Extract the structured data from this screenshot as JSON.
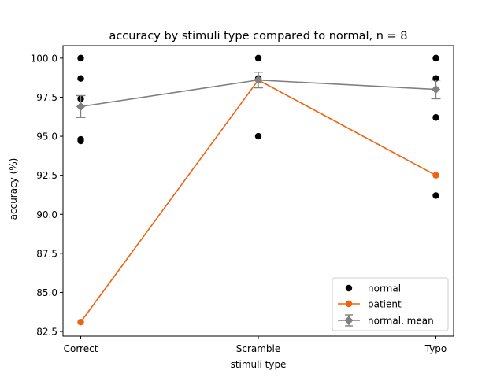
{
  "chart_data": {
    "type": "scatter",
    "title": "accuracy by stimuli type compared to normal, n = 8",
    "xlabel": "stimuli type",
    "ylabel": "accuracy (%)",
    "categories": [
      "Correct",
      "Scramble",
      "Typo"
    ],
    "ylim": [
      82.2,
      100.8
    ],
    "yticks": [
      82.5,
      85.0,
      87.5,
      90.0,
      92.5,
      95.0,
      97.5,
      100.0
    ],
    "ytick_labels": [
      "82.5",
      "85.0",
      "87.5",
      "90.0",
      "92.5",
      "95.0",
      "97.5",
      "100.0"
    ],
    "grid": false,
    "legend_position": "lower right",
    "series": [
      {
        "name": "normal",
        "kind": "scatter",
        "color": "#000000",
        "points": [
          {
            "x": "Correct",
            "y": 100.0
          },
          {
            "x": "Correct",
            "y": 98.7
          },
          {
            "x": "Correct",
            "y": 97.4
          },
          {
            "x": "Correct",
            "y": 94.8
          },
          {
            "x": "Correct",
            "y": 94.7
          },
          {
            "x": "Scramble",
            "y": 100.0
          },
          {
            "x": "Scramble",
            "y": 98.7
          },
          {
            "x": "Scramble",
            "y": 95.0
          },
          {
            "x": "Typo",
            "y": 100.0
          },
          {
            "x": "Typo",
            "y": 98.7
          },
          {
            "x": "Typo",
            "y": 96.2
          },
          {
            "x": "Typo",
            "y": 91.2
          }
        ]
      },
      {
        "name": "patient",
        "kind": "line",
        "color": "#f0620f",
        "values": [
          83.1,
          98.6,
          92.5
        ]
      },
      {
        "name": "normal, mean",
        "kind": "errorbar",
        "color": "#808080",
        "values": [
          96.9,
          98.6,
          98.0
        ],
        "errors": [
          0.7,
          0.5,
          0.6
        ]
      }
    ]
  }
}
